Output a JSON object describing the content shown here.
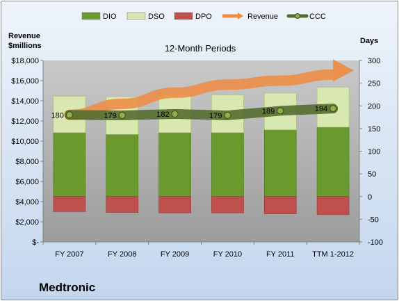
{
  "chart_data": {
    "type": "bar",
    "title": "12-Month Periods",
    "categories": [
      "FY 2007",
      "FY 2008",
      "FY 2009",
      "FY 2010",
      "FY 2011",
      "TTM 1-2012"
    ],
    "y_left": {
      "label": "Revenue $millions",
      "range": [
        0,
        18000
      ],
      "ticks": [
        0,
        2000,
        4000,
        6000,
        8000,
        10000,
        12000,
        14000,
        16000,
        18000
      ],
      "tick_labels": [
        "$-",
        "$2,000",
        "$4,000",
        "$6,000",
        "$8,000",
        "$10,000",
        "$12,000",
        "$14,000",
        "$16,000",
        "$18,000"
      ]
    },
    "y_right": {
      "label": "Days",
      "range": [
        -100,
        300
      ],
      "ticks": [
        -100,
        -50,
        0,
        50,
        100,
        150,
        200,
        250,
        300
      ]
    },
    "series": [
      {
        "name": "DIO",
        "kind": "stacked-bar",
        "axis": "right",
        "color": "#6a9a2e",
        "values": [
          141,
          137,
          141,
          141,
          147,
          153
        ]
      },
      {
        "name": "DSO",
        "kind": "stacked-bar",
        "axis": "right",
        "color": "#d9e8b0",
        "values": [
          80,
          83,
          83,
          83,
          81,
          88
        ]
      },
      {
        "name": "DPO",
        "kind": "negative-bar",
        "axis": "right",
        "color": "#c0504d",
        "values": [
          -33,
          -35,
          -36,
          -36,
          -38,
          -40
        ]
      },
      {
        "name": "Revenue",
        "kind": "arrow-line",
        "axis": "left",
        "color": "#ec8e47",
        "values": [
          12600,
          13700,
          14800,
          15600,
          16000,
          16600
        ]
      },
      {
        "name": "CCC",
        "kind": "line",
        "axis": "right",
        "color": "#556b2f",
        "values": [
          180,
          179,
          182,
          179,
          189,
          194
        ]
      }
    ],
    "data_labels": [
      "180",
      "179",
      "182",
      "179",
      "189",
      "194"
    ],
    "legend_position": "top",
    "grid": false
  },
  "company_name": "Medtronic"
}
